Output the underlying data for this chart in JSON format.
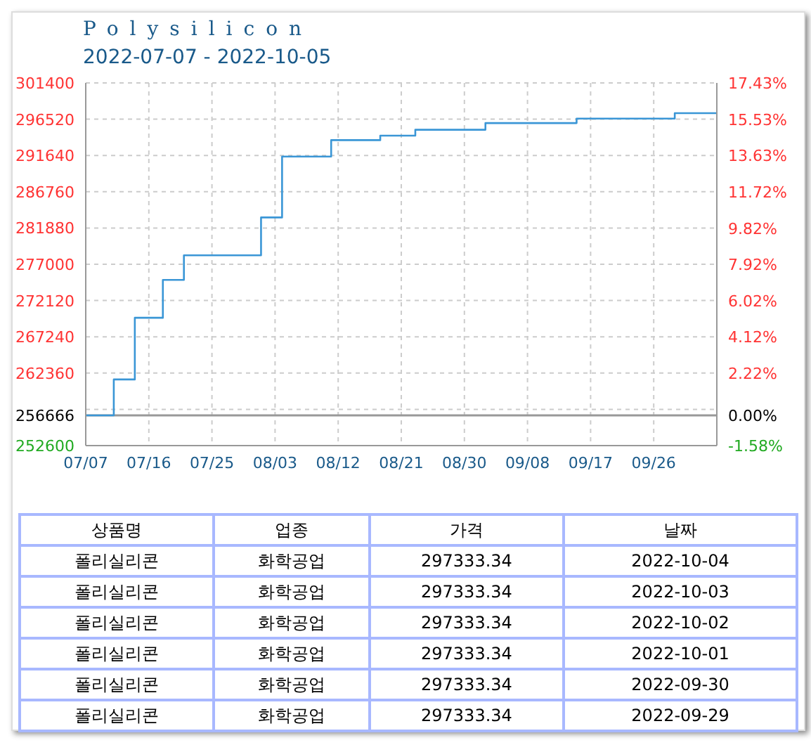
{
  "chart_data": [
    {
      "type": "step",
      "title": "Polysilicon",
      "subtitle": "2022-07-07 - 2022-10-05",
      "x": [
        "2022-07-07",
        "2022-07-11",
        "2022-07-14",
        "2022-07-18",
        "2022-07-21",
        "2022-08-01",
        "2022-08-04",
        "2022-08-11",
        "2022-08-18",
        "2022-08-23",
        "2022-09-02",
        "2022-09-15",
        "2022-09-29",
        "2022-10-05"
      ],
      "series": [
        {
          "color": "#3a96d6",
          "values": [
            256666,
            261500,
            269800,
            274900,
            278200,
            283300,
            291500,
            293700,
            294300,
            295100,
            296000,
            296600,
            297333.34,
            297333.34
          ]
        }
      ],
      "xlim": [
        "2022-07-07",
        "2022-10-05"
      ],
      "xticks": [
        {
          "value": "2022-07-07",
          "label": "07/07"
        },
        {
          "value": "2022-07-16",
          "label": "07/16"
        },
        {
          "value": "2022-07-25",
          "label": "07/25"
        },
        {
          "value": "2022-08-03",
          "label": "08/03"
        },
        {
          "value": "2022-08-12",
          "label": "08/12"
        },
        {
          "value": "2022-08-21",
          "label": "08/21"
        },
        {
          "value": "2022-08-30",
          "label": "08/30"
        },
        {
          "value": "2022-09-08",
          "label": "09/08"
        },
        {
          "value": "2022-09-17",
          "label": "09/17"
        },
        {
          "value": "2022-09-26",
          "label": "09/26"
        }
      ],
      "ylim": [
        252600,
        301400
      ],
      "yticks": [
        252600,
        256666,
        {
          "value": 257480,
          "label": null
        },
        262360,
        267240,
        272120,
        277000,
        281880,
        286760,
        291640,
        296520,
        301400
      ],
      "y2lim": [
        -1.58,
        17.43
      ],
      "y2ticks": [
        {
          "value": -1.58,
          "label": "-1.58%"
        },
        {
          "value": 0,
          "label": "0.00%"
        },
        {
          "value": 2.22,
          "label": "2.22%"
        },
        {
          "value": 4.12,
          "label": "4.12%"
        },
        {
          "value": 6.02,
          "label": "6.02%"
        },
        {
          "value": 7.92,
          "label": "7.92%"
        },
        {
          "value": 9.82,
          "label": "9.82%"
        },
        {
          "value": 11.72,
          "label": "11.72%"
        },
        {
          "value": 13.63,
          "label": "13.63%"
        },
        {
          "value": 15.53,
          "label": "15.53%"
        },
        {
          "value": 17.43,
          "label": "17.43%"
        }
      ],
      "ref_lines": [
        {
          "axis": "y",
          "value": 256666,
          "color": "#999999"
        }
      ],
      "grid": true,
      "marker": "none",
      "line_style": "solid"
    },
    {
      "type": "other",
      "categories": [
        "상품명",
        "업종",
        "가격",
        "날짜"
      ],
      "annotations": [
        "폴리실리콘",
        "화학공업",
        "297333.34",
        "2022-10-04",
        "폴리실리콘",
        "화학공업",
        "297333.34",
        "2022-10-03",
        "폴리실리콘",
        "화학공업",
        "297333.34",
        "2022-10-02",
        "폴리실리콘",
        "화학공업",
        "297333.34",
        "2022-10-01",
        "폴리실리콘",
        "화학공업",
        "297333.34",
        "2022-09-30",
        "폴리실리콘",
        "화학공업",
        "297333.34",
        "2022-09-29"
      ]
    }
  ]
}
